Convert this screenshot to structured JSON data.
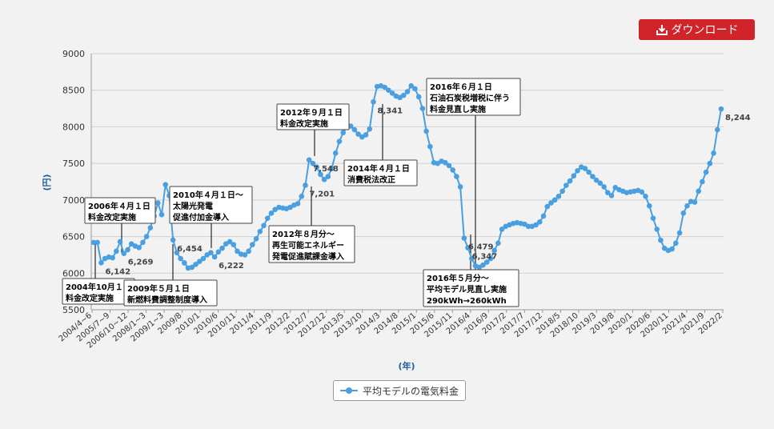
{
  "download_label": "ダウンロード",
  "legend_label": "平均モデルの電気料金",
  "chart_data": {
    "type": "line",
    "ylabel": "(円)",
    "xlabel": "(年)",
    "ylim": [
      5500,
      9000
    ],
    "yticks": [
      5500,
      6000,
      6500,
      7000,
      7500,
      8000,
      8500,
      9000
    ],
    "grid": true,
    "legend_position": "bottom",
    "series_color": "#4a9fe0",
    "xtick_labels": [
      "2004/4~6",
      "2005/7~9",
      "2006/10~12",
      "2008/1~3",
      "2009/1~3",
      "2009/8",
      "2010/1",
      "2010/6",
      "2010/11",
      "2011/4",
      "2011/9",
      "2012/2",
      "2012/7",
      "2012/12",
      "2013/5",
      "2013/10",
      "2014/3",
      "2014/8",
      "2015/1",
      "2015/6",
      "2015/11",
      "2016/4",
      "2016/9",
      "2017/2",
      "2017/7",
      "2017/12",
      "2018/5",
      "2018/10",
      "2019/3",
      "2019/8",
      "2020/1",
      "2020/6",
      "2020/11",
      "2021/4",
      "2021/9",
      "2022/2"
    ],
    "series": [
      {
        "name": "平均モデルの電気料金",
        "values": [
          6420,
          6420,
          6142,
          6200,
          6220,
          6210,
          6300,
          6430,
          6269,
          6320,
          6400,
          6370,
          6350,
          6420,
          6500,
          6620,
          6780,
          6960,
          6800,
          7210,
          7060,
          6454,
          6280,
          6200,
          6140,
          6070,
          6080,
          6120,
          6160,
          6200,
          6250,
          6280,
          6222,
          6290,
          6340,
          6400,
          6430,
          6390,
          6300,
          6260,
          6250,
          6300,
          6390,
          6470,
          6570,
          6650,
          6750,
          6820,
          6870,
          6900,
          6890,
          6880,
          6900,
          6930,
          6950,
          7050,
          7201,
          7548,
          7500,
          7450,
          7350,
          7280,
          7320,
          7430,
          7640,
          7800,
          7920,
          8000,
          8010,
          7960,
          7900,
          7860,
          7890,
          7970,
          8341,
          8550,
          8560,
          8540,
          8500,
          8460,
          8420,
          8400,
          8430,
          8480,
          8560,
          8520,
          8410,
          8250,
          7940,
          7730,
          7510,
          7500,
          7530,
          7510,
          7470,
          7410,
          7320,
          7180,
          6479,
          6347,
          6200,
          6100,
          6080,
          6110,
          6150,
          6200,
          6310,
          6410,
          6600,
          6640,
          6660,
          6680,
          6690,
          6680,
          6670,
          6640,
          6640,
          6660,
          6700,
          6780,
          6910,
          6960,
          7000,
          7050,
          7120,
          7200,
          7260,
          7330,
          7400,
          7450,
          7430,
          7380,
          7320,
          7270,
          7230,
          7180,
          7100,
          7060,
          7170,
          7140,
          7120,
          7100,
          7110,
          7120,
          7130,
          7110,
          7050,
          6920,
          6750,
          6600,
          6450,
          6340,
          6310,
          6330,
          6410,
          6550,
          6820,
          6920,
          6980,
          6970,
          7120,
          7250,
          7380,
          7500,
          7640,
          7960,
          8244
        ]
      }
    ],
    "annotations": [
      {
        "lines": [
          "2004年10月１日",
          "料金改定実施"
        ]
      },
      {
        "lines": [
          "2006年４月１日",
          "料金改定実施"
        ]
      },
      {
        "lines": [
          "2009年５月１日",
          "新燃料費調整制度導入"
        ]
      },
      {
        "lines": [
          "2010年４月１日～",
          "太陽光発電",
          "促進付加金導入"
        ]
      },
      {
        "lines": [
          "2012年８月分～",
          "再生可能エネルギー",
          "発電促進賦課金導入"
        ]
      },
      {
        "lines": [
          "2012年９月１日",
          "料金改定実施"
        ]
      },
      {
        "lines": [
          "2014年４月１日",
          "消費税法改正"
        ]
      },
      {
        "lines": [
          "2016年６月１日",
          "石油石炭税増税に伴う",
          "料金見直し実施"
        ]
      },
      {
        "lines": [
          "2016年５月分～",
          "平均モデル見直し実施",
          "290kWh→260kWh"
        ]
      }
    ],
    "data_labels": [
      {
        "index": 2,
        "text": "6,142"
      },
      {
        "index": 8,
        "text": "6,269"
      },
      {
        "index": 21,
        "text": "6,454"
      },
      {
        "index": 32,
        "text": "6,222"
      },
      {
        "index": 56,
        "text": "7,201"
      },
      {
        "index": 57,
        "text": "7,548"
      },
      {
        "index": 74,
        "text": "8,341"
      },
      {
        "index": 98,
        "text": "6,479"
      },
      {
        "index": 99,
        "text": "6,347"
      },
      {
        "index": 166,
        "text": "8,244"
      }
    ]
  }
}
